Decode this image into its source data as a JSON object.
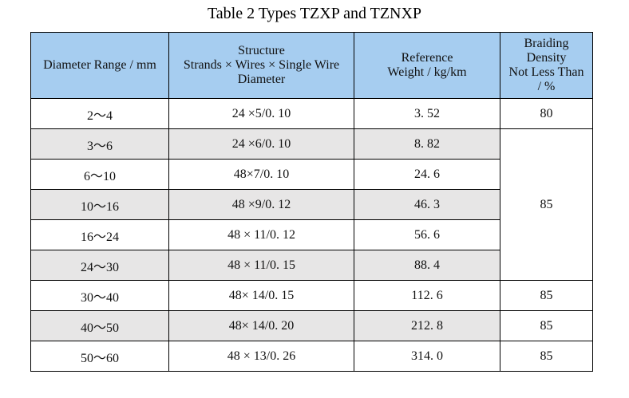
{
  "title": "Table 2 Types TZXP and TZNXP",
  "table": {
    "header": [
      [
        "Diameter Range / mm"
      ],
      [
        "Structure",
        "Strands × Wires × Single Wire",
        "Diameter"
      ],
      [
        "Reference",
        "Weight / kg/km"
      ],
      [
        "Braiding",
        "Density",
        "Not Less Than",
        "/ %"
      ]
    ],
    "rows": [
      [
        "2～4",
        "24 ×5/0. 10",
        "3. 52",
        "80"
      ],
      [
        "3～6",
        "24 ×6/0. 10",
        "8. 82",
        "85"
      ],
      [
        "6～10",
        "48×7/0. 10",
        "24. 6"
      ],
      [
        "10～16",
        "48 ×9/0. 12",
        "46. 3"
      ],
      [
        "16～24",
        "48 × 11/0. 12",
        "56. 6"
      ],
      [
        "24～30",
        "48 × 11/0. 15",
        "88. 4"
      ],
      [
        "30～40",
        "48× 14/0. 15",
        "112. 6",
        "85"
      ],
      [
        "40～50",
        "48× 14/0. 20",
        "212. 8",
        "85"
      ],
      [
        "50～60",
        "48 × 13/0. 26",
        "314. 0",
        "85"
      ]
    ]
  }
}
